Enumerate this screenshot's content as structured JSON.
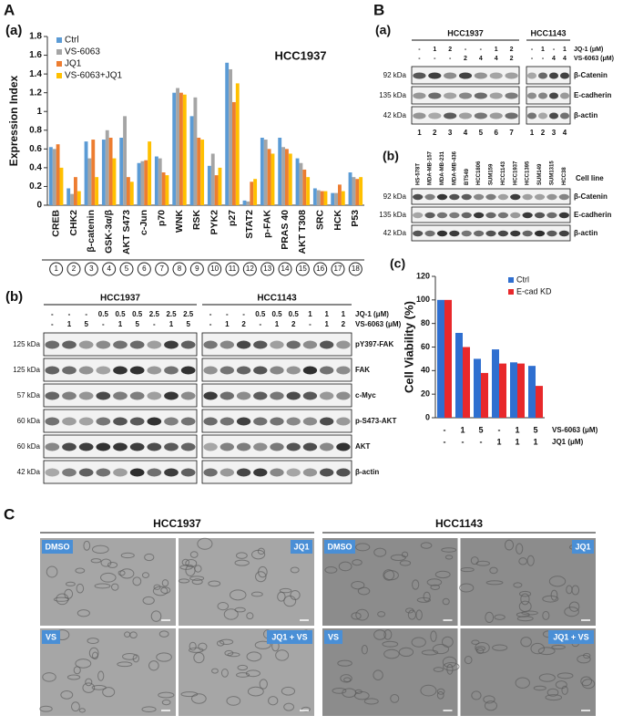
{
  "panel_labels": {
    "A": "A",
    "B": "B",
    "C": "C"
  },
  "subpanel_labels": [
    "(a)",
    "(b)",
    "(a)",
    "(b)",
    "(c)"
  ],
  "chart_data": [
    {
      "type": "bar",
      "title": "HCC1937",
      "y_label": "Expression Index",
      "categories": [
        "CREB",
        "CHK2",
        "β-catenin",
        "GSK-3α/β",
        "AKT S473",
        "c-Jun",
        "p70",
        "WNK",
        "RSK",
        "PYK2",
        "p27",
        "STAT2",
        "p-FAK",
        "PRAS 40",
        "AKT T308",
        "SRC",
        "HCK",
        "P53"
      ],
      "category_numbers": [
        "1",
        "2",
        "3",
        "4",
        "5",
        "6",
        "7",
        "8",
        "9",
        "10",
        "11",
        "12",
        "13",
        "14",
        "15",
        "16",
        "17",
        "18"
      ],
      "series": [
        {
          "name": "Ctrl",
          "color": "#5b9bd5",
          "values": [
            0.62,
            0.18,
            0.68,
            0.7,
            0.72,
            0.45,
            0.52,
            1.2,
            0.95,
            0.42,
            1.52,
            0.05,
            0.72,
            0.72,
            0.5,
            0.18,
            0.13,
            0.35
          ]
        },
        {
          "name": "VS-6063",
          "color": "#a5a5a5",
          "values": [
            0.6,
            0.12,
            0.5,
            0.8,
            0.95,
            0.47,
            0.5,
            1.25,
            1.15,
            0.55,
            1.45,
            0.04,
            0.7,
            0.62,
            0.45,
            0.16,
            0.13,
            0.3
          ]
        },
        {
          "name": "JQ1",
          "color": "#ed7d31",
          "values": [
            0.65,
            0.3,
            0.7,
            0.72,
            0.3,
            0.48,
            0.35,
            1.2,
            0.72,
            0.32,
            1.1,
            0.25,
            0.6,
            0.6,
            0.38,
            0.15,
            0.22,
            0.28
          ]
        },
        {
          "name": "VS-6063+JQ1",
          "color": "#ffc000",
          "values": [
            0.4,
            0.15,
            0.3,
            0.5,
            0.25,
            0.68,
            0.32,
            1.18,
            0.7,
            0.4,
            1.3,
            0.28,
            0.55,
            0.55,
            0.3,
            0.15,
            0.15,
            0.3
          ]
        }
      ],
      "ylim": [
        0,
        1.8
      ],
      "yticks": [
        0,
        0.2,
        0.4,
        0.6,
        0.8,
        1,
        1.2,
        1.4,
        1.6,
        1.8
      ],
      "legend": "upper left"
    },
    {
      "type": "bar",
      "y_label": "Cell Viability (%)",
      "series": [
        {
          "name": "Ctrl",
          "color": "#2f6fd0",
          "values": [
            100,
            72,
            50,
            58,
            47,
            44
          ]
        },
        {
          "name": "E-cad KD",
          "color": "#e8282b",
          "values": [
            100,
            60,
            38,
            46,
            46,
            27
          ]
        }
      ],
      "condition_rows": [
        {
          "label": "VS-6063 (μM)",
          "values": [
            "-",
            "1",
            "5",
            "-",
            "1",
            "5"
          ]
        },
        {
          "label": "JQ1 (μM)",
          "values": [
            "-",
            "-",
            "-",
            "1",
            "1",
            "1"
          ]
        }
      ],
      "ylim": [
        0,
        120
      ],
      "yticks": [
        0,
        20,
        40,
        60,
        80,
        100,
        120
      ],
      "legend": "upper right"
    }
  ],
  "blot_A_b": {
    "treatment_labels": [
      "JQ-1 (μM)",
      "VS-6063 (μM)"
    ],
    "groups": [
      {
        "cell_line": "HCC1937",
        "treatments": [
          [
            "-",
            "-",
            "-",
            "0.5",
            "0.5",
            "0.5",
            "2.5",
            "2.5",
            "2.5"
          ],
          [
            "-",
            "1",
            "5",
            "-",
            "1",
            "5",
            "-",
            "1",
            "5"
          ]
        ]
      },
      {
        "cell_line": "HCC1143",
        "treatments": [
          [
            "-",
            "-",
            "-",
            "0.5",
            "0.5",
            "0.5",
            "1",
            "1",
            "1"
          ],
          [
            "-",
            "1",
            "2",
            "-",
            "1",
            "2",
            "-",
            "1",
            "2"
          ]
        ]
      }
    ],
    "rows": [
      {
        "size": "125 kDa",
        "protein": "pY397-FAK"
      },
      {
        "size": "125 kDa",
        "protein": "FAK"
      },
      {
        "size": "57 kDa",
        "protein": "c-Myc"
      },
      {
        "size": "60 kDa",
        "protein": "p-S473-AKT"
      },
      {
        "size": "60 kDa",
        "protein": "AKT"
      },
      {
        "size": "42 kDa",
        "protein": "β-actin"
      }
    ]
  },
  "blot_B_a": {
    "treatment_labels": [
      "JQ-1 (μM)",
      "VS-6063 (μM)"
    ],
    "groups": [
      {
        "cell_line": "HCC1937",
        "treatments": [
          [
            "-",
            "1",
            "2",
            "-",
            "-",
            "1",
            "2"
          ],
          [
            "-",
            "-",
            "-",
            "2",
            "4",
            "4",
            "2"
          ]
        ],
        "lanes": [
          "1",
          "2",
          "3",
          "4",
          "5",
          "6",
          "7"
        ]
      },
      {
        "cell_line": "HCC1143",
        "treatments": [
          [
            "-",
            "1",
            "-",
            "1"
          ],
          [
            "-",
            "-",
            "4",
            "4"
          ]
        ],
        "lanes": [
          "1",
          "2",
          "3",
          "4"
        ]
      }
    ],
    "rows": [
      {
        "size": "92 kDa",
        "protein": "β-Catenin"
      },
      {
        "size": "135 kDa",
        "protein": "E-cadherin"
      },
      {
        "size": "42 kDa",
        "protein": "β-actin"
      }
    ]
  },
  "blot_B_b": {
    "axis_label": "Cell line",
    "cell_lines": [
      "HS-578T",
      "MDA-MB-157",
      "MDA-MB-231",
      "MDA-MB-436",
      "BT549",
      "HCC1806",
      "SUM159",
      "HCC1143",
      "HCC1937",
      "HCC1395",
      "SUM149",
      "SUM1315",
      "HCC38"
    ],
    "rows": [
      {
        "size": "92 kDa",
        "protein": "β-Catenin"
      },
      {
        "size": "135 kDa",
        "protein": "E-cadherin"
      },
      {
        "size": "42 kDa",
        "protein": "β-actin"
      }
    ]
  },
  "micrographs": {
    "cell_lines": [
      "HCC1937",
      "HCC1143"
    ],
    "conditions": [
      "DMSO",
      "JQ1",
      "VS",
      "JQ1 + VS"
    ]
  }
}
